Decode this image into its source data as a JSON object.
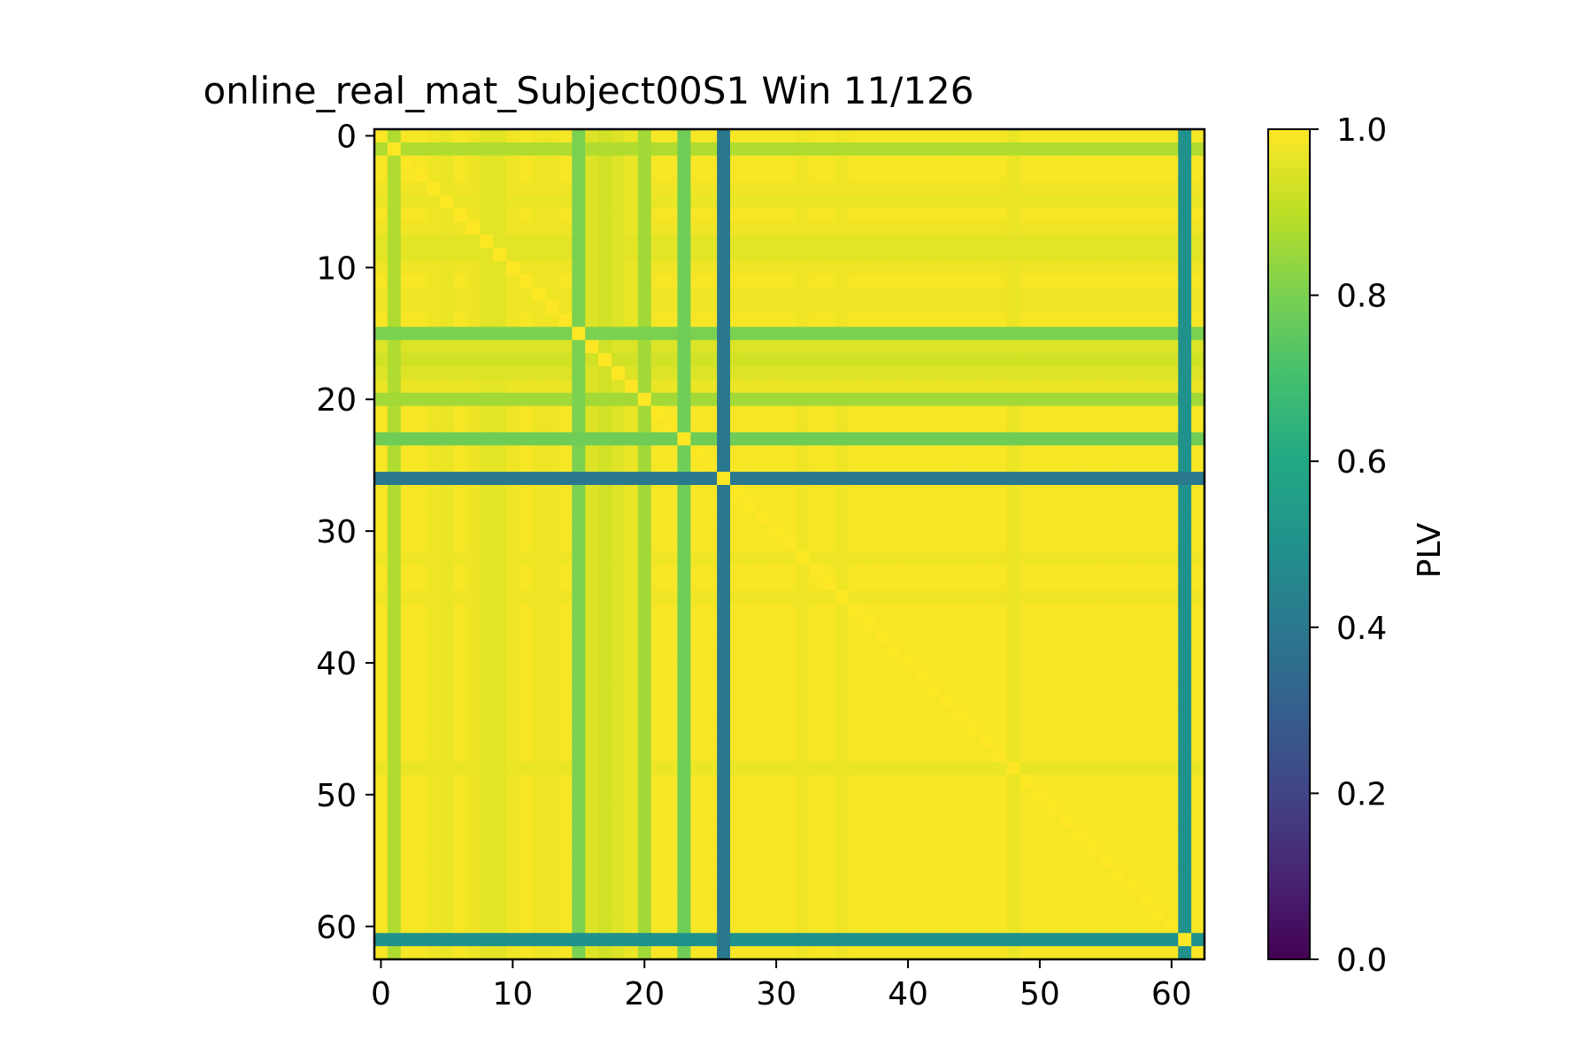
{
  "chart_data": {
    "type": "heatmap",
    "title": "online_real_mat_Subject00S1 Win 11/126",
    "size": 63,
    "x_ticks": [
      "0",
      "10",
      "20",
      "30",
      "40",
      "50",
      "60"
    ],
    "y_ticks": [
      "0",
      "10",
      "20",
      "30",
      "40",
      "50",
      "60"
    ],
    "colorbar": {
      "label": "PLV",
      "colormap": "viridis",
      "range": [
        0.0,
        1.0
      ],
      "ticks": [
        "0.0",
        "0.2",
        "0.4",
        "0.6",
        "0.8",
        "1.0"
      ]
    },
    "channel_coupling": {
      "0": 0.99,
      "1": 0.88,
      "2": 0.99,
      "3": 0.99,
      "4": 0.98,
      "5": 0.97,
      "6": 0.99,
      "7": 0.98,
      "8": 0.96,
      "9": 0.96,
      "10": 0.98,
      "11": 0.99,
      "12": 0.98,
      "13": 0.98,
      "14": 0.99,
      "15": 0.8,
      "16": 0.95,
      "17": 0.93,
      "18": 0.95,
      "19": 0.97,
      "20": 0.86,
      "21": 0.99,
      "22": 0.99,
      "23": 0.78,
      "24": 0.99,
      "25": 0.99,
      "26": 0.4,
      "27": 0.99,
      "28": 0.99,
      "29": 0.99,
      "30": 0.99,
      "31": 0.99,
      "32": 0.98,
      "33": 0.99,
      "34": 0.99,
      "35": 0.98,
      "36": 0.99,
      "37": 0.99,
      "38": 0.99,
      "39": 0.99,
      "40": 0.99,
      "41": 0.99,
      "42": 0.99,
      "43": 0.99,
      "44": 0.99,
      "45": 0.99,
      "46": 0.99,
      "47": 0.99,
      "48": 0.97,
      "49": 0.99,
      "50": 0.99,
      "51": 0.99,
      "52": 0.99,
      "53": 0.99,
      "54": 0.99,
      "55": 0.99,
      "56": 0.99,
      "57": 0.99,
      "58": 0.99,
      "59": 0.99,
      "60": 0.99,
      "61": 0.5,
      "62": 0.99
    },
    "diagonal": 1.0
  }
}
